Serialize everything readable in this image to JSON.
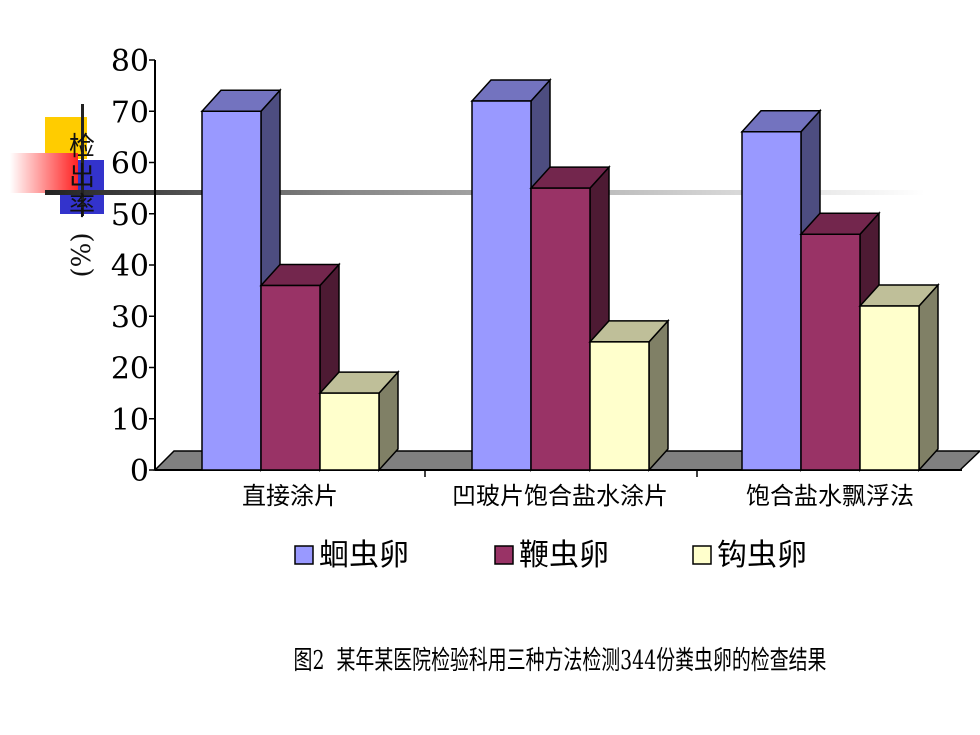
{
  "chart_data": {
    "type": "bar",
    "categories": [
      "直接涂片",
      "凹玻片饱合盐水涂片",
      "饱合盐水飘浮法"
    ],
    "series": [
      {
        "name": "蛔虫卵",
        "values": [
          70,
          72,
          66
        ]
      },
      {
        "name": "鞭虫卵",
        "values": [
          36,
          55,
          46
        ]
      },
      {
        "name": "钩虫卵",
        "values": [
          15,
          25,
          32
        ]
      }
    ],
    "ylabel": "检出率 (%)",
    "ylim": [
      0,
      80
    ],
    "yticks": [
      "0",
      "10",
      "20",
      "30",
      "40",
      "50",
      "60",
      "70",
      "80"
    ],
    "legend_position": "bottom",
    "three_d": true
  },
  "colors": {
    "series": [
      "#9999ff",
      "#993366",
      "#ffffcc"
    ],
    "floor": "#808080",
    "accent_yellow": "#ffcc00",
    "accent_blue": "#3333cc",
    "accent_red": "#ff3333"
  },
  "caption": "图2  某年某医院检验科用三种方法检测344份粪虫卵的检查结果"
}
